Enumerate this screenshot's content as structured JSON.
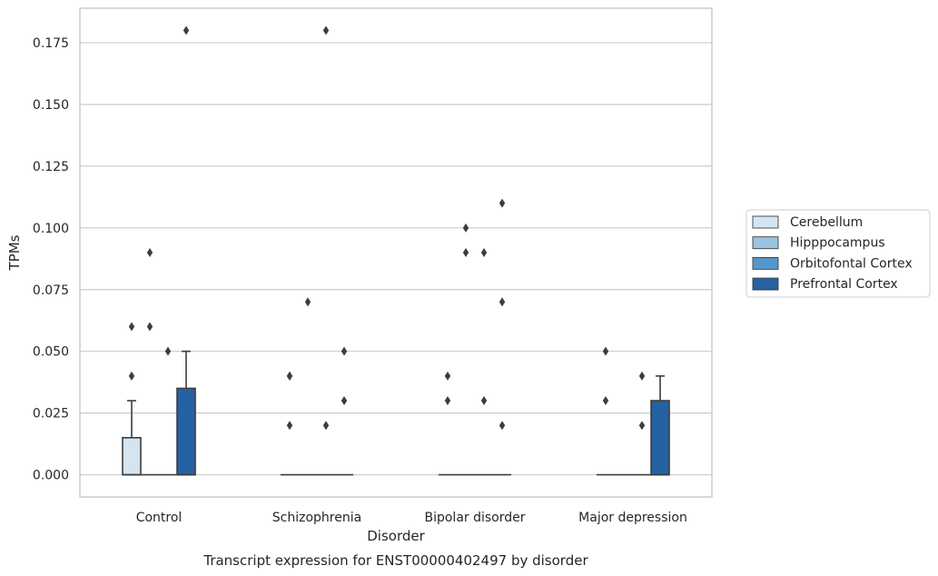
{
  "chart_data": {
    "type": "box",
    "title": "Transcript expression for ENST00000402497 by disorder",
    "xlabel": "Disorder",
    "ylabel": "TPMs",
    "ylim": [
      -0.009,
      0.189
    ],
    "yticks": [
      "0.000",
      "0.025",
      "0.050",
      "0.075",
      "0.100",
      "0.125",
      "0.150",
      "0.175"
    ],
    "grid": "horizontal",
    "legend_position": "right",
    "categories": [
      "Control",
      "Schizophrenia",
      "Bipolar disorder",
      "Major depression"
    ],
    "series": [
      {
        "name": "Cerebellum",
        "color": "#d4e4f1"
      },
      {
        "name": "Hipppocampus",
        "color": "#9ac4df"
      },
      {
        "name": "Orbitofontal Cortex",
        "color": "#5597c9"
      },
      {
        "name": "Prefrontal Cortex",
        "color": "#2562a4"
      }
    ],
    "boxes": [
      [
        {
          "q1": 0,
          "median": 0,
          "q3": 0.015,
          "whisker_low": 0,
          "whisker_high": 0.03,
          "outliers": [
            0.04,
            0.06
          ]
        },
        {
          "q1": 0,
          "median": 0,
          "q3": 0,
          "whisker_low": 0,
          "whisker_high": 0,
          "outliers": [
            0.06,
            0.09
          ]
        },
        {
          "q1": 0,
          "median": 0,
          "q3": 0,
          "whisker_low": 0,
          "whisker_high": 0,
          "outliers": [
            0.05
          ]
        },
        {
          "q1": 0,
          "median": 0,
          "q3": 0.035,
          "whisker_low": 0,
          "whisker_high": 0.05,
          "outliers": [
            0.18
          ]
        }
      ],
      [
        {
          "q1": 0,
          "median": 0,
          "q3": 0,
          "whisker_low": 0,
          "whisker_high": 0,
          "outliers": [
            0.02,
            0.04,
            0.04
          ]
        },
        {
          "q1": 0,
          "median": 0,
          "q3": 0,
          "whisker_low": 0,
          "whisker_high": 0,
          "outliers": [
            0.07
          ]
        },
        {
          "q1": 0,
          "median": 0,
          "q3": 0,
          "whisker_low": 0,
          "whisker_high": 0,
          "outliers": [
            0.02,
            0.18
          ]
        },
        {
          "q1": 0,
          "median": 0,
          "q3": 0,
          "whisker_low": 0,
          "whisker_high": 0,
          "outliers": [
            0.03,
            0.05
          ]
        }
      ],
      [
        {
          "q1": 0,
          "median": 0,
          "q3": 0,
          "whisker_low": 0,
          "whisker_high": 0,
          "outliers": [
            0.03,
            0.04
          ]
        },
        {
          "q1": 0,
          "median": 0,
          "q3": 0,
          "whisker_low": 0,
          "whisker_high": 0,
          "outliers": [
            0.09,
            0.1
          ]
        },
        {
          "q1": 0,
          "median": 0,
          "q3": 0,
          "whisker_low": 0,
          "whisker_high": 0,
          "outliers": [
            0.03,
            0.09
          ]
        },
        {
          "q1": 0,
          "median": 0,
          "q3": 0,
          "whisker_low": 0,
          "whisker_high": 0,
          "outliers": [
            0.02,
            0.07,
            0.11
          ]
        }
      ],
      [
        {
          "q1": 0,
          "median": 0,
          "q3": 0,
          "whisker_low": 0,
          "whisker_high": 0,
          "outliers": [
            0.03,
            0.05
          ]
        },
        {
          "q1": 0,
          "median": 0,
          "q3": 0,
          "whisker_low": 0,
          "whisker_high": 0,
          "outliers": []
        },
        {
          "q1": 0,
          "median": 0,
          "q3": 0,
          "whisker_low": 0,
          "whisker_high": 0,
          "outliers": [
            0.02,
            0.04
          ]
        },
        {
          "q1": 0,
          "median": 0,
          "q3": 0.03,
          "whisker_low": 0,
          "whisker_high": 0.04,
          "outliers": []
        }
      ]
    ]
  }
}
